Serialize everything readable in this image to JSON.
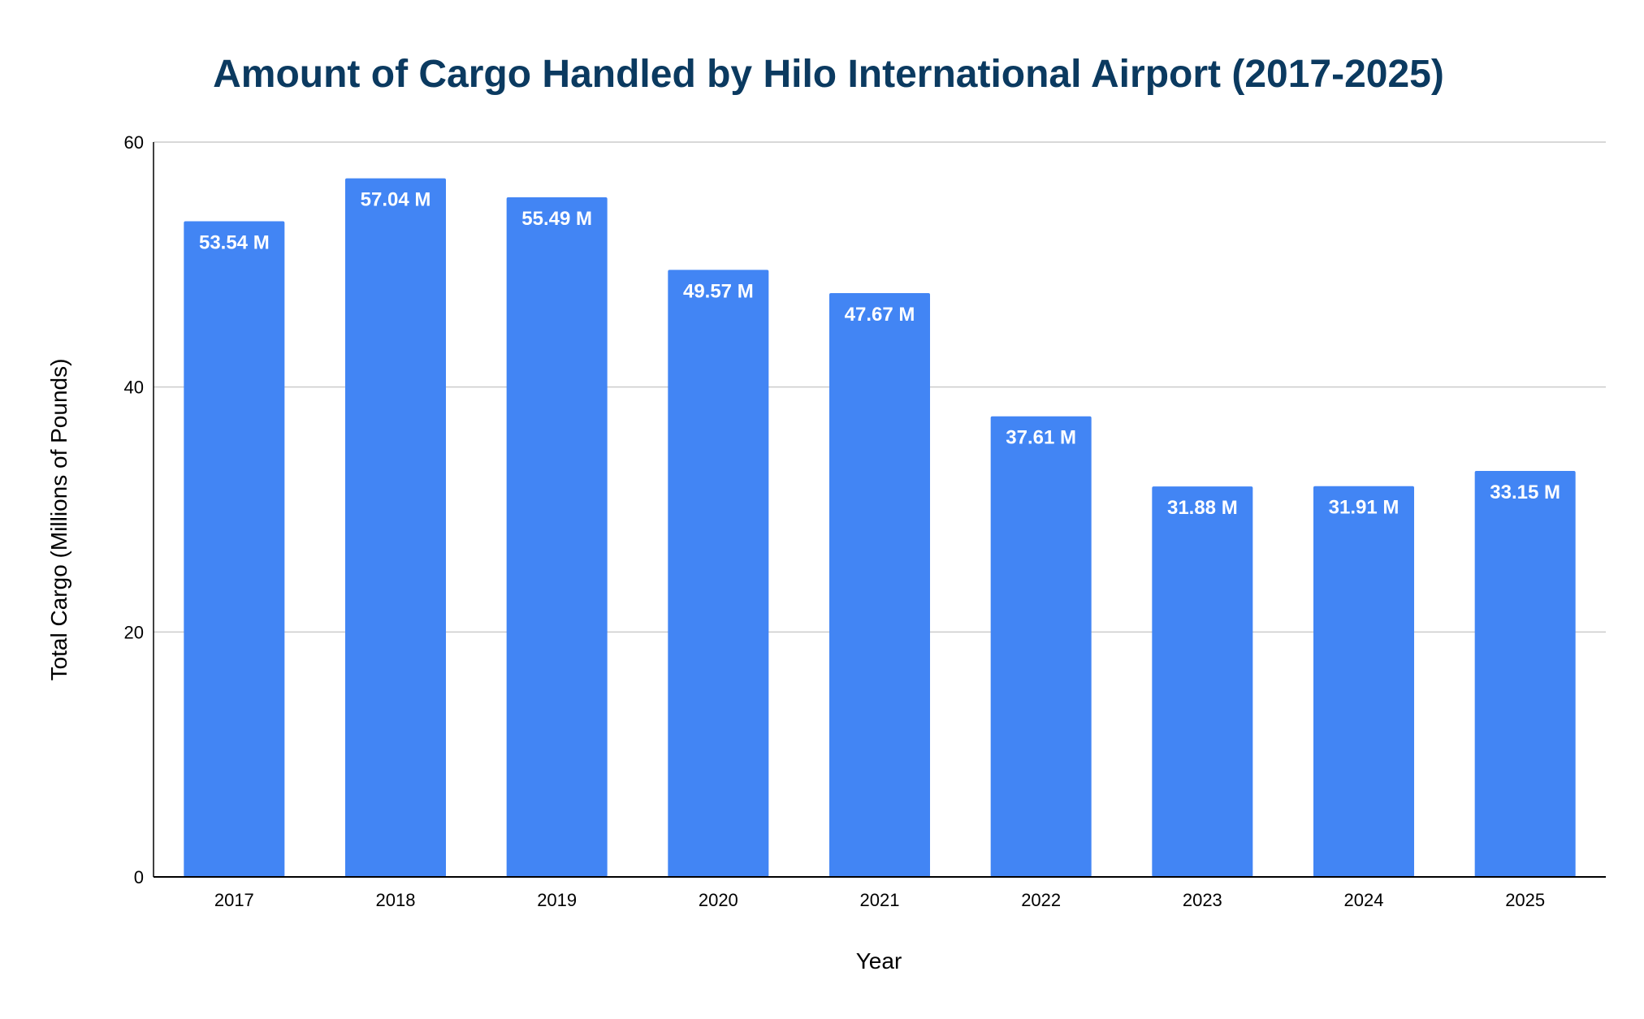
{
  "chart_data": {
    "type": "bar",
    "title": "Amount of Cargo Handled by Hilo International Airport (2017-2025)",
    "xlabel": "Year",
    "ylabel": "Total Cargo (Millions of Pounds)",
    "categories": [
      "2017",
      "2018",
      "2019",
      "2020",
      "2021",
      "2022",
      "2023",
      "2024",
      "2025"
    ],
    "values": [
      53.54,
      57.04,
      55.49,
      49.57,
      47.67,
      37.61,
      31.88,
      31.91,
      33.15
    ],
    "data_labels": [
      "53.54 M",
      "57.04 M",
      "55.49 M",
      "49.57 M",
      "47.67 M",
      "37.61 M",
      "31.88 M",
      "31.91 M",
      "33.15 M"
    ],
    "ylim": [
      0,
      60
    ],
    "yticks": [
      "0",
      "20",
      "40",
      "60"
    ],
    "grid": true,
    "legend": "none",
    "colors": {
      "bar": "#4285f4",
      "title": "#0b3a60",
      "grid": "#cccccc",
      "axis": "#000000"
    }
  }
}
